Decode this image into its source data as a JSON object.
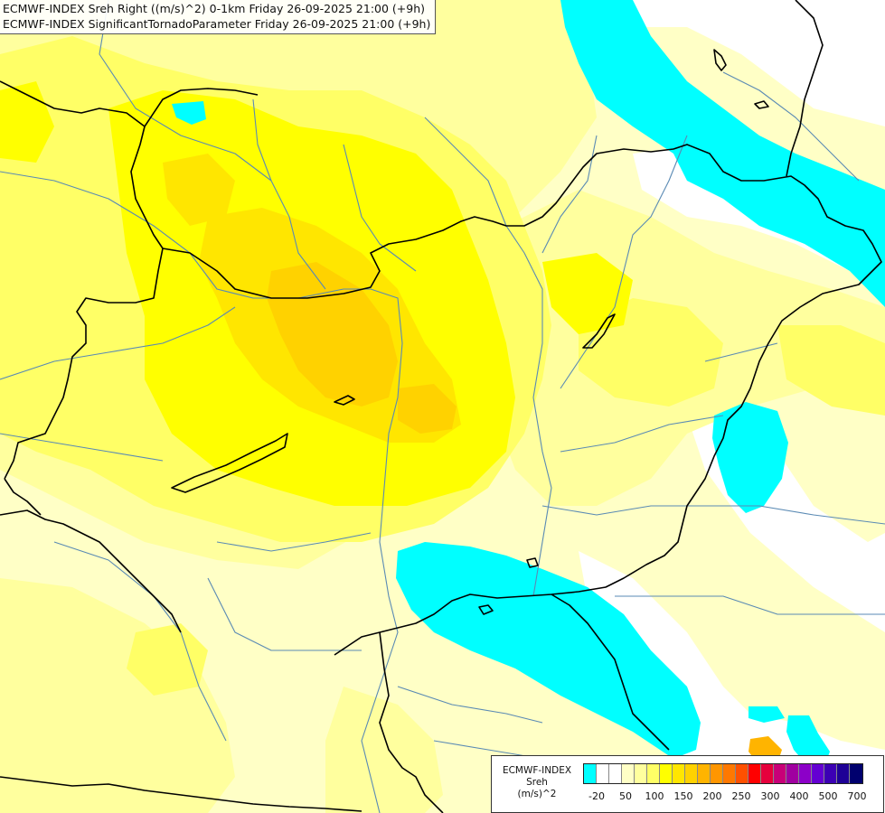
{
  "header": {
    "line1": "ECMWF-INDEX Sreh Right ((m/s)^2) 0-1km Friday 26-09-2025 21:00 (+9h)",
    "line2": "ECMWF-INDEX SignificantTornadoParameter Friday 26-09-2025 21:00 (+9h)"
  },
  "legend": {
    "line1": "ECMWF-INDEX",
    "line2": "Sreh",
    "line3": "(m/s)^2",
    "colors": [
      "#00ffff",
      "#ffffff",
      "#ffffff",
      "#ffffc6",
      "#ffff9e",
      "#ffff66",
      "#ffff00",
      "#ffe600",
      "#ffd200",
      "#ffb400",
      "#ff9600",
      "#ff7800",
      "#ff5000",
      "#ff0000",
      "#e6003c",
      "#c80078",
      "#a000a0",
      "#8c00c8",
      "#6400d2",
      "#3c00b4",
      "#1e0096",
      "#00006e"
    ],
    "tick_labels": [
      "-20",
      "50",
      "100",
      "150",
      "200",
      "250",
      "300",
      "400",
      "500",
      "700"
    ]
  },
  "map_colors": {
    "background": "#ffffc6",
    "light_yellow": "#ffff9e",
    "yellow": "#ffff66",
    "bright_yellow": "#ffff00",
    "gold": "#ffe600",
    "orange_yellow": "#ffd200",
    "cyan": "#00ffff",
    "white": "#ffffff",
    "border_line": "#000000",
    "river_line": "#5a8ab4"
  }
}
